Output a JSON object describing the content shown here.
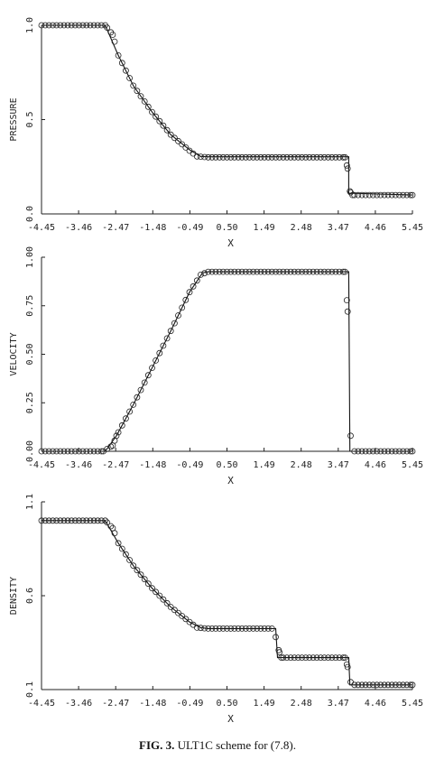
{
  "caption": {
    "label": "FIG. 3.",
    "text": "ULT1C scheme for (7.8)."
  },
  "chart_data": [
    {
      "type": "line",
      "ylabel": "PRESSURE",
      "xlabel": "X",
      "xlim": [
        -4.45,
        5.45
      ],
      "ylim": [
        0.0,
        1.0
      ],
      "x_ticks": [
        "-4.45",
        "-3.46",
        "-2.47",
        "-1.48",
        "-0.49",
        "0.50",
        "1.49",
        "2.48",
        "3.47",
        "4.46",
        "5.45"
      ],
      "y_ticks": [
        {
          "v": 0.0,
          "label": "0.0"
        },
        {
          "v": 0.5,
          "label": "0.5"
        },
        {
          "v": 1.0,
          "label": "1.0"
        }
      ],
      "exact": [
        [
          -4.45,
          1.0
        ],
        [
          -2.75,
          1.0
        ],
        [
          -2.4,
          0.84
        ],
        [
          -2.0,
          0.68
        ],
        [
          -1.5,
          0.54
        ],
        [
          -1.0,
          0.42
        ],
        [
          -0.5,
          0.34
        ],
        [
          -0.2,
          0.305
        ],
        [
          0.0,
          0.303
        ],
        [
          3.75,
          0.303
        ],
        [
          3.75,
          0.11
        ],
        [
          5.45,
          0.1
        ]
      ],
      "symbols": [
        [
          -4.45,
          1.0
        ],
        [
          -2.75,
          1.0
        ],
        [
          -2.55,
          0.95
        ],
        [
          -2.4,
          0.84
        ],
        [
          -2.0,
          0.68
        ],
        [
          -1.5,
          0.54
        ],
        [
          -1.0,
          0.42
        ],
        [
          -0.5,
          0.335
        ],
        [
          -0.3,
          0.305
        ],
        [
          0.0,
          0.3
        ],
        [
          3.65,
          0.3
        ],
        [
          3.72,
          0.24
        ],
        [
          3.78,
          0.12
        ],
        [
          3.85,
          0.1
        ],
        [
          5.45,
          0.1
        ]
      ]
    },
    {
      "type": "line",
      "ylabel": "VELOCITY",
      "xlabel": "X",
      "xlim": [
        -4.45,
        5.45
      ],
      "ylim": [
        0.0,
        1.0
      ],
      "x_ticks": [
        "-4.45",
        "-3.46",
        "-2.47",
        "-1.48",
        "-0.49",
        "0.50",
        "1.49",
        "2.48",
        "3.47",
        "4.46",
        "5.45"
      ],
      "y_ticks": [
        {
          "v": 0.0,
          "label": "0.00"
        },
        {
          "v": 0.25,
          "label": "0.25"
        },
        {
          "v": 0.5,
          "label": "0.50"
        },
        {
          "v": 0.75,
          "label": "0.75"
        },
        {
          "v": 1.0,
          "label": "1.00"
        }
      ],
      "exact": [
        [
          -4.45,
          0.0
        ],
        [
          -2.75,
          0.0
        ],
        [
          -2.45,
          0.08
        ],
        [
          -2.0,
          0.24
        ],
        [
          -1.5,
          0.43
        ],
        [
          -1.0,
          0.62
        ],
        [
          -0.5,
          0.82
        ],
        [
          -0.15,
          0.92
        ],
        [
          0.0,
          0.925
        ],
        [
          3.75,
          0.925
        ],
        [
          3.78,
          0.0
        ],
        [
          5.45,
          0.0
        ]
      ],
      "symbols": [
        [
          -4.45,
          0.0
        ],
        [
          -2.8,
          0.0
        ],
        [
          -2.55,
          0.03
        ],
        [
          -2.45,
          0.08
        ],
        [
          -2.0,
          0.24
        ],
        [
          -1.5,
          0.43
        ],
        [
          -1.0,
          0.62
        ],
        [
          -0.5,
          0.82
        ],
        [
          -0.2,
          0.91
        ],
        [
          0.0,
          0.925
        ],
        [
          3.65,
          0.925
        ],
        [
          3.72,
          0.72
        ],
        [
          3.8,
          0.08
        ],
        [
          3.9,
          0.0
        ],
        [
          5.45,
          0.0
        ]
      ]
    },
    {
      "type": "line",
      "ylabel": "DENSITY",
      "xlabel": "X",
      "xlim": [
        -4.45,
        5.45
      ],
      "ylim": [
        0.1,
        1.1
      ],
      "x_ticks": [
        "-4.45",
        "-3.46",
        "-2.47",
        "-1.48",
        "-0.49",
        "0.50",
        "1.49",
        "2.48",
        "3.47",
        "4.46",
        "5.45"
      ],
      "y_ticks": [
        {
          "v": 0.1,
          "label": "0.1"
        },
        {
          "v": 0.6,
          "label": "0.6"
        },
        {
          "v": 1.1,
          "label": "1.1"
        }
      ],
      "exact": [
        [
          -4.45,
          1.0
        ],
        [
          -2.75,
          1.0
        ],
        [
          -2.4,
          0.88
        ],
        [
          -2.0,
          0.76
        ],
        [
          -1.5,
          0.64
        ],
        [
          -1.0,
          0.54
        ],
        [
          -0.5,
          0.46
        ],
        [
          -0.2,
          0.43
        ],
        [
          0.0,
          0.425
        ],
        [
          1.8,
          0.425
        ],
        [
          1.85,
          0.27
        ],
        [
          3.75,
          0.27
        ],
        [
          3.78,
          0.125
        ],
        [
          5.45,
          0.125
        ]
      ],
      "symbols": [
        [
          -4.45,
          1.0
        ],
        [
          -2.75,
          1.0
        ],
        [
          -2.55,
          0.96
        ],
        [
          -2.4,
          0.88
        ],
        [
          -2.0,
          0.76
        ],
        [
          -1.5,
          0.64
        ],
        [
          -1.0,
          0.54
        ],
        [
          -0.5,
          0.46
        ],
        [
          -0.3,
          0.43
        ],
        [
          0.0,
          0.425
        ],
        [
          1.7,
          0.425
        ],
        [
          1.8,
          0.38
        ],
        [
          1.88,
          0.31
        ],
        [
          1.95,
          0.27
        ],
        [
          3.65,
          0.27
        ],
        [
          3.72,
          0.22
        ],
        [
          3.8,
          0.14
        ],
        [
          3.9,
          0.125
        ],
        [
          5.45,
          0.125
        ]
      ]
    }
  ]
}
